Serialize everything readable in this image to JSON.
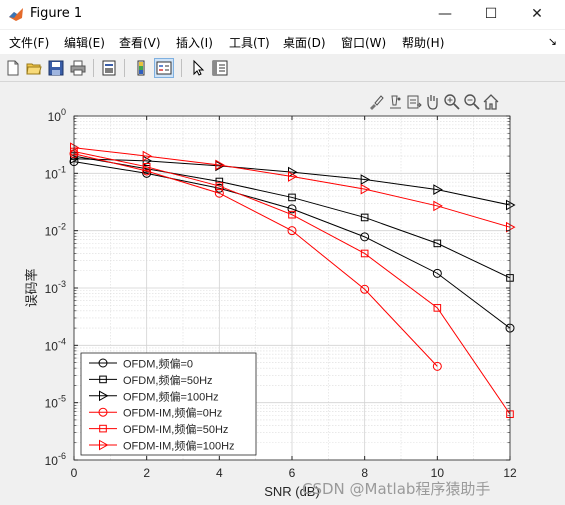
{
  "window": {
    "title": "Figure 1",
    "controls": {
      "minimize": "—",
      "maximize": "☐",
      "close": "✕"
    }
  },
  "menu": {
    "items": [
      "文件(F)",
      "编辑(E)",
      "查看(V)",
      "插入(I)",
      "工具(T)",
      "桌面(D)",
      "窗口(W)",
      "帮助(H)"
    ],
    "dock_arrow": "↘"
  },
  "toolbar": {
    "icons": [
      "new-figure-icon",
      "open-file-icon",
      "save-icon",
      "print-icon",
      "print-preview-icon",
      "colorbar-icon",
      "legend-icon",
      "pointer-icon",
      "property-inspector-icon"
    ]
  },
  "axes_toolbar": {
    "icons": [
      "brush-icon",
      "data-tip-icon",
      "export-icon",
      "pan-icon",
      "zoom-in-icon",
      "zoom-out-icon",
      "home-icon"
    ]
  },
  "watermark": "CSDN @Matlab程序猿助手",
  "chart_data": {
    "type": "line",
    "xlabel": "SNR (dB)",
    "ylabel": "误码率",
    "xlim": [
      0,
      12
    ],
    "ylim": [
      1e-06,
      1
    ],
    "yscale": "log",
    "grid": true,
    "minor_grid": true,
    "legend_position": "bottom-left",
    "x_ticks": [
      "0",
      "2",
      "4",
      "6",
      "8",
      "10",
      "12"
    ],
    "y_ticks": [
      {
        "base": "10",
        "exp": "0"
      },
      {
        "base": "10",
        "exp": "-1"
      },
      {
        "base": "10",
        "exp": "-2"
      },
      {
        "base": "10",
        "exp": "-3"
      },
      {
        "base": "10",
        "exp": "-4"
      },
      {
        "base": "10",
        "exp": "-5"
      },
      {
        "base": "10",
        "exp": "-6"
      }
    ],
    "x": [
      0,
      2,
      4,
      6,
      8,
      10,
      12
    ],
    "series": [
      {
        "name": "OFDM,频偏=0",
        "color": "#000000",
        "marker": "circle",
        "values": [
          0.16,
          0.1,
          0.055,
          0.024,
          0.0078,
          0.0018,
          0.0002
        ]
      },
      {
        "name": "OFDM,频偏=50Hz",
        "color": "#000000",
        "marker": "square",
        "values": [
          0.2,
          0.12,
          0.072,
          0.038,
          0.017,
          0.006,
          0.0015
        ]
      },
      {
        "name": "OFDM,频偏=100Hz",
        "color": "#000000",
        "marker": "triangle-right",
        "values": [
          0.18,
          0.165,
          0.135,
          0.105,
          0.078,
          0.052,
          0.028
        ]
      },
      {
        "name": "OFDM-IM,频偏=0Hz",
        "color": "#ff0000",
        "marker": "circle",
        "values": [
          0.22,
          0.11,
          0.045,
          0.01,
          0.00095,
          4.3e-05,
          null
        ]
      },
      {
        "name": "OFDM-IM,频偏=50Hz",
        "color": "#ff0000",
        "marker": "square",
        "values": [
          0.24,
          0.13,
          0.06,
          0.019,
          0.004,
          0.00045,
          6.3e-06
        ]
      },
      {
        "name": "OFDM-IM,频偏=100Hz",
        "color": "#ff0000",
        "marker": "triangle-right",
        "values": [
          0.28,
          0.2,
          0.14,
          0.088,
          0.053,
          0.027,
          0.0115
        ]
      }
    ]
  }
}
